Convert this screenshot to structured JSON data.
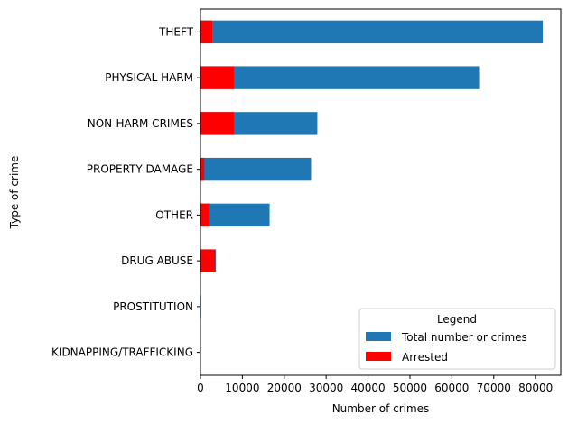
{
  "chart_data": {
    "type": "bar",
    "orientation": "horizontal",
    "stacked": "overlay",
    "title": "",
    "xlabel": "Number of crimes",
    "ylabel": "Type of crime",
    "xlim": [
      0,
      86000
    ],
    "xticks": [
      0,
      10000,
      20000,
      30000,
      40000,
      50000,
      60000,
      70000,
      80000
    ],
    "xtick_labels": [
      "0",
      "10000",
      "20000",
      "30000",
      "40000",
      "50000",
      "60000",
      "70000",
      "80000"
    ],
    "grid": false,
    "categories": [
      "THEFT",
      "PHYSICAL HARM",
      "NON-HARM CRIMES",
      "PROPERTY DAMAGE",
      "OTHER",
      "DRUG ABUSE",
      "PROSTITUTION",
      "KIDNAPPING/TRAFFICKING"
    ],
    "series": [
      {
        "name": "Total number or crimes",
        "color": "#1f77b4",
        "values": [
          81700,
          66500,
          27900,
          26400,
          16500,
          3700,
          150,
          80
        ]
      },
      {
        "name": "Arrested",
        "color": "#ff0000",
        "values": [
          2800,
          8000,
          8000,
          900,
          2000,
          3500,
          100,
          30
        ]
      }
    ],
    "legend": {
      "title": "Legend",
      "position": "lower-right"
    }
  }
}
